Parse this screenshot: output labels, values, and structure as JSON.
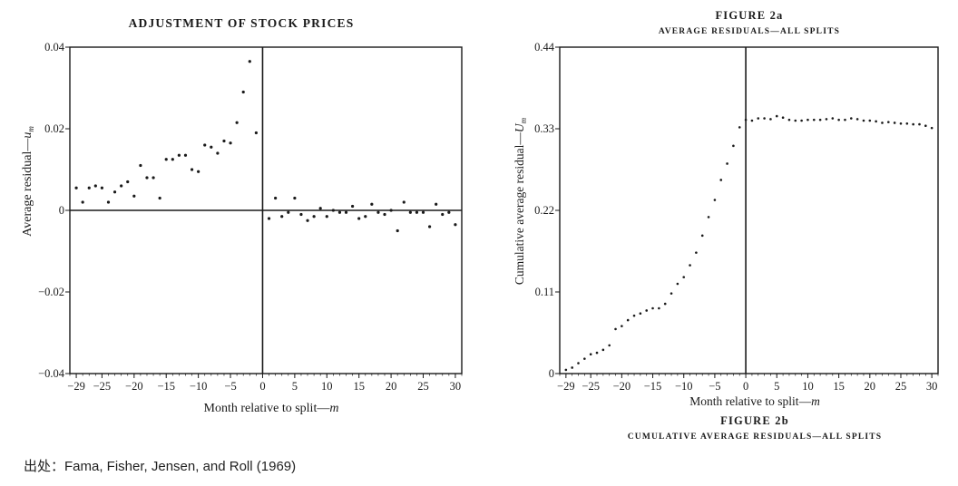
{
  "source_note": "出处：Fama, Fisher, Jensen, and Roll (1969)",
  "colors": {
    "ink": "#1a1a1a",
    "background": "#ffffff"
  },
  "chart_data": [
    {
      "type": "scatter",
      "title": "ADJUSTMENT OF STOCK PRICES",
      "xlabel": "Month relative to split",
      "xlabel_suffix": "m",
      "ylabel": "Average residual",
      "ylabel_suffix": "u",
      "ylabel_sub": "m",
      "xlim": [
        -30,
        31
      ],
      "ylim": [
        -0.04,
        0.04
      ],
      "xticks": [
        -29,
        -25,
        -20,
        -15,
        -10,
        -5,
        0,
        5,
        10,
        15,
        20,
        25,
        30
      ],
      "xtick_labels": [
        "−29",
        "−25",
        "−20",
        "−15",
        "−10",
        "−5",
        "0",
        "5",
        "10",
        "15",
        "20",
        "25",
        "30"
      ],
      "yticks": [
        0.04,
        0.02,
        0,
        -0.02,
        -0.04
      ],
      "ytick_labels": [
        "0.04",
        "0.02",
        "0",
        "−0.02",
        "−0.04"
      ],
      "reference_lines": {
        "x": 0,
        "y": 0
      },
      "grid": false,
      "x": [
        -29,
        -28,
        -27,
        -26,
        -25,
        -24,
        -23,
        -22,
        -21,
        -20,
        -19,
        -18,
        -17,
        -16,
        -15,
        -14,
        -13,
        -12,
        -11,
        -10,
        -9,
        -8,
        -7,
        -6,
        -5,
        -4,
        -3,
        -2,
        -1,
        1,
        2,
        3,
        4,
        5,
        6,
        7,
        8,
        9,
        10,
        11,
        12,
        13,
        14,
        15,
        16,
        17,
        18,
        19,
        20,
        21,
        22,
        23,
        24,
        25,
        26,
        27,
        28,
        29,
        30
      ],
      "values": [
        0.0055,
        0.002,
        0.0055,
        0.006,
        0.0055,
        0.002,
        0.0045,
        0.006,
        0.007,
        0.0035,
        0.011,
        0.008,
        0.008,
        0.003,
        0.0125,
        0.0125,
        0.0135,
        0.0135,
        0.01,
        0.0095,
        0.016,
        0.0155,
        0.014,
        0.017,
        0.0165,
        0.0215,
        0.029,
        0.0365,
        0.019,
        -0.002,
        0.003,
        -0.0015,
        -0.0005,
        0.003,
        -0.001,
        -0.0025,
        -0.0015,
        0.0005,
        -0.0015,
        0.0,
        -0.0005,
        -0.0005,
        0.001,
        -0.002,
        -0.0015,
        0.0015,
        -0.0005,
        -0.001,
        0.0,
        -0.005,
        0.002,
        -0.0005,
        -0.0005,
        -0.0005,
        -0.004,
        0.0015,
        -0.001,
        -0.0005,
        -0.0035
      ]
    },
    {
      "type": "scatter",
      "title": "FIGURE 2a",
      "subtitle": "AVERAGE RESIDUALS—ALL SPLITS",
      "caption_title": "FIGURE 2b",
      "caption_subtitle": "CUMULATIVE AVERAGE RESIDUALS—ALL SPLITS",
      "xlabel": "Month relative to split",
      "xlabel_suffix": "m",
      "ylabel": "Cumulative average residual",
      "ylabel_suffix": "U",
      "ylabel_sub": "m",
      "xlim": [
        -30,
        31
      ],
      "ylim": [
        0,
        0.44
      ],
      "xticks": [
        -29,
        -25,
        -20,
        -15,
        -10,
        -5,
        0,
        5,
        10,
        15,
        20,
        25,
        30
      ],
      "xtick_labels": [
        "−29",
        "−25",
        "−20",
        "−15",
        "−10",
        "−5",
        "0",
        "5",
        "10",
        "15",
        "20",
        "25",
        "30"
      ],
      "yticks": [
        0.44,
        0.33,
        0.22,
        0.11,
        0
      ],
      "ytick_labels": [
        "0.44",
        "0.33",
        "0.22",
        "0.11",
        "0"
      ],
      "reference_lines": {
        "x": 0
      },
      "grid": false,
      "x": [
        -29,
        -28,
        -27,
        -26,
        -25,
        -24,
        -23,
        -22,
        -21,
        -20,
        -19,
        -18,
        -17,
        -16,
        -15,
        -14,
        -13,
        -12,
        -11,
        -10,
        -9,
        -8,
        -7,
        -6,
        -5,
        -4,
        -3,
        -2,
        -1,
        0,
        1,
        2,
        3,
        4,
        5,
        6,
        7,
        8,
        9,
        10,
        11,
        12,
        13,
        14,
        15,
        16,
        17,
        18,
        19,
        20,
        21,
        22,
        23,
        24,
        25,
        26,
        27,
        28,
        29,
        30
      ],
      "values": [
        0.005,
        0.008,
        0.014,
        0.02,
        0.026,
        0.028,
        0.032,
        0.038,
        0.06,
        0.064,
        0.072,
        0.078,
        0.081,
        0.085,
        0.088,
        0.088,
        0.094,
        0.108,
        0.121,
        0.13,
        0.146,
        0.163,
        0.186,
        0.211,
        0.234,
        0.261,
        0.283,
        0.307,
        0.332,
        0.342,
        0.341,
        0.344,
        0.344,
        0.343,
        0.347,
        0.345,
        0.342,
        0.341,
        0.341,
        0.342,
        0.342,
        0.342,
        0.343,
        0.344,
        0.342,
        0.342,
        0.344,
        0.343,
        0.341,
        0.341,
        0.34,
        0.338,
        0.339,
        0.338,
        0.337,
        0.337,
        0.336,
        0.336,
        0.334,
        0.331
      ]
    }
  ]
}
